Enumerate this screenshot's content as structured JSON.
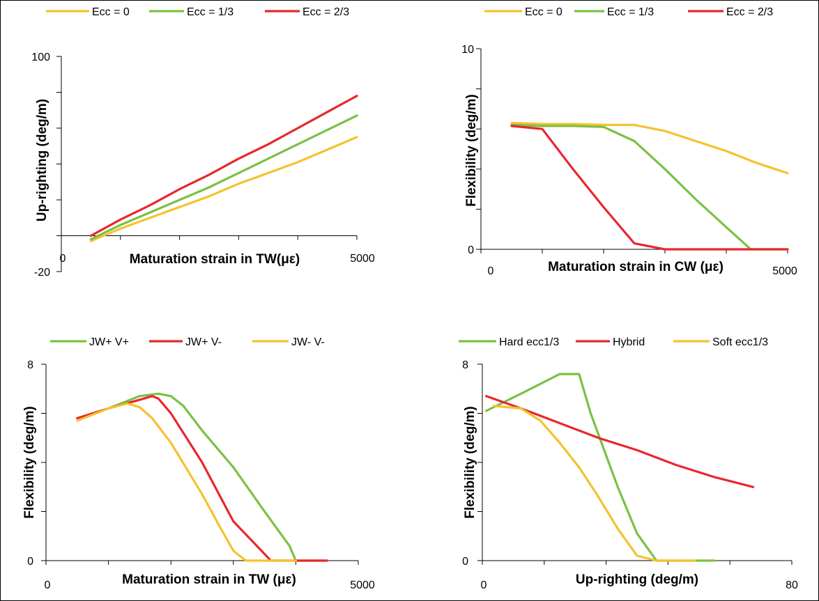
{
  "chart_data": [
    {
      "type": "line",
      "title": "",
      "xlabel": "Maturation strain in TW(με)",
      "ylabel": "Up-righting (deg/m)",
      "xlim": [
        0,
        5000
      ],
      "ylim": [
        -20,
        100
      ],
      "yticks": [
        -20,
        0,
        20,
        40,
        60,
        80,
        100
      ],
      "ytick_labels": [
        "-20",
        "",
        "",
        "",
        "",
        "",
        "100"
      ],
      "xtick_labels": [
        "0",
        "5000"
      ],
      "legend_position": "top",
      "grid": false,
      "series": [
        {
          "name": "Ecc = 0",
          "color": "#f5c22e",
          "x": [
            500,
            1000,
            1500,
            2000,
            2500,
            3000,
            3500,
            4000,
            4500,
            5000
          ],
          "y": [
            -3,
            4,
            10,
            16,
            22,
            29,
            35,
            41,
            48,
            55
          ]
        },
        {
          "name": "Ecc = 1/3",
          "color": "#7ac143",
          "x": [
            500,
            1000,
            1500,
            2000,
            2500,
            3000,
            3500,
            4000,
            4500,
            5000
          ],
          "y": [
            -2,
            6,
            13,
            20,
            27,
            35,
            43,
            51,
            59,
            67
          ]
        },
        {
          "name": "Ecc = 2/3",
          "color": "#e8272d",
          "x": [
            500,
            1000,
            1500,
            2000,
            2500,
            3000,
            3500,
            4000,
            4500,
            5000
          ],
          "y": [
            0,
            9,
            17,
            26,
            34,
            43,
            51,
            60,
            69,
            78
          ]
        }
      ]
    },
    {
      "type": "line",
      "title": "",
      "xlabel": "Maturation strain in CW (με)",
      "ylabel": "Flexibility (deg/m)",
      "xlim": [
        0,
        5000
      ],
      "ylim": [
        0,
        10
      ],
      "yticks": [
        0,
        2,
        4,
        6,
        8,
        10
      ],
      "ytick_labels": [
        "0",
        "",
        "",
        "",
        "",
        "10"
      ],
      "xtick_labels": [
        "0",
        "5000"
      ],
      "legend_position": "top",
      "grid": false,
      "series": [
        {
          "name": "Ecc = 0",
          "color": "#f5c22e",
          "x": [
            500,
            1000,
            1500,
            2000,
            2500,
            3000,
            3500,
            4000,
            4500,
            5000
          ],
          "y": [
            6.3,
            6.25,
            6.25,
            6.2,
            6.2,
            5.9,
            5.4,
            4.9,
            4.3,
            3.8
          ]
        },
        {
          "name": "Ecc = 1/3",
          "color": "#7ac143",
          "x": [
            500,
            1000,
            1500,
            2000,
            2500,
            3000,
            3500,
            4000,
            4400,
            5000
          ],
          "y": [
            6.2,
            6.15,
            6.15,
            6.1,
            5.4,
            4.0,
            2.5,
            1.1,
            0,
            0
          ]
        },
        {
          "name": "Ecc = 2/3",
          "color": "#e8272d",
          "x": [
            500,
            1000,
            1500,
            2000,
            2500,
            3000,
            3500,
            4000,
            4500,
            5000
          ],
          "y": [
            6.15,
            6.0,
            4.0,
            2.1,
            0.3,
            0,
            0,
            0,
            0,
            0
          ]
        }
      ]
    },
    {
      "type": "line",
      "title": "",
      "xlabel": "Maturation strain in TW (με)",
      "ylabel": "Flexibility (deg/m)",
      "xlim": [
        0,
        5000
      ],
      "ylim": [
        0,
        8
      ],
      "yticks": [
        0,
        2,
        4,
        6,
        8
      ],
      "ytick_labels": [
        "0",
        "",
        "",
        "",
        "8"
      ],
      "xtick_labels": [
        "0",
        "5000"
      ],
      "legend_position": "top",
      "grid": false,
      "series": [
        {
          "name": "JW+ V+",
          "color": "#7ac143",
          "x": [
            500,
            1000,
            1500,
            1800,
            2000,
            2200,
            2500,
            3000,
            3500,
            3900,
            4000,
            4500
          ],
          "y": [
            5.8,
            6.2,
            6.7,
            6.8,
            6.7,
            6.3,
            5.3,
            3.8,
            2.0,
            0.6,
            0.0,
            0.0
          ]
        },
        {
          "name": "JW+ V-",
          "color": "#e8272d",
          "x": [
            500,
            1000,
            1500,
            1700,
            1800,
            2000,
            2500,
            3000,
            3600,
            4000,
            4500
          ],
          "y": [
            5.8,
            6.2,
            6.55,
            6.7,
            6.6,
            6.0,
            4.0,
            1.6,
            0.0,
            0.0,
            0.0
          ]
        },
        {
          "name": "JW- V-",
          "color": "#f5c22e",
          "x": [
            500,
            1000,
            1300,
            1500,
            1700,
            2000,
            2500,
            2800,
            3000,
            3200,
            4000
          ],
          "y": [
            5.7,
            6.2,
            6.4,
            6.25,
            5.8,
            4.8,
            2.7,
            1.3,
            0.4,
            0.0,
            0.0
          ]
        }
      ]
    },
    {
      "type": "line",
      "title": "",
      "xlabel": "Up-righting (deg/m)",
      "ylabel": "Flexibility (deg/m)",
      "xlim": [
        0,
        80
      ],
      "ylim": [
        0,
        8
      ],
      "yticks": [
        0,
        2,
        4,
        6,
        8
      ],
      "ytick_labels": [
        "0",
        "",
        "",
        "",
        "8"
      ],
      "xtick_labels": [
        "0",
        "80"
      ],
      "legend_position": "top",
      "grid": false,
      "series": [
        {
          "name": "Hard ecc1/3",
          "color": "#7ac143",
          "x": [
            1,
            10,
            20,
            25,
            28,
            35,
            40,
            45,
            48,
            50,
            60
          ],
          "y": [
            6.1,
            6.8,
            7.6,
            7.6,
            6.0,
            3.0,
            1.1,
            0.0,
            0.0,
            0.0,
            0.0
          ]
        },
        {
          "name": "Hybrid",
          "color": "#e8272d",
          "x": [
            1,
            10,
            20,
            30,
            40,
            50,
            60,
            70
          ],
          "y": [
            6.7,
            6.2,
            5.6,
            5.0,
            4.5,
            3.9,
            3.4,
            3.0
          ]
        },
        {
          "name": "Soft ecc1/3",
          "color": "#f5c22e",
          "x": [
            3,
            10,
            15,
            20,
            25,
            30,
            35,
            40,
            45,
            50,
            55
          ],
          "y": [
            6.3,
            6.2,
            5.7,
            4.8,
            3.8,
            2.6,
            1.3,
            0.2,
            0.0,
            0.0,
            0.0
          ]
        }
      ]
    }
  ]
}
